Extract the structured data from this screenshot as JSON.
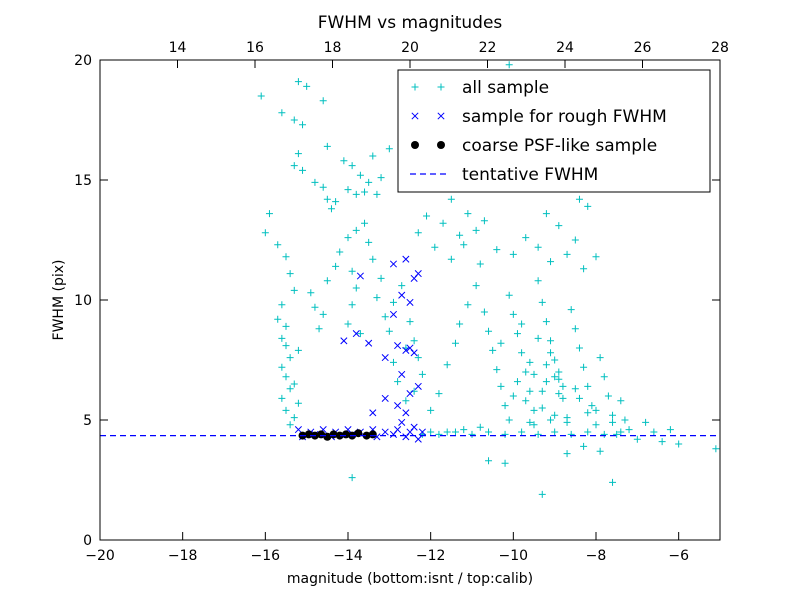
{
  "chart_data": {
    "type": "scatter",
    "title": "FWHM vs magnitudes",
    "xlabel": "magnitude (bottom:isnt / top:calib)",
    "ylabel": "FWHM (pix)",
    "xlim": [
      -20,
      -5
    ],
    "ylim": [
      0,
      20
    ],
    "x_ticks": [
      -20,
      -18,
      -16,
      -14,
      -12,
      -10,
      -8,
      -6
    ],
    "x_tick_labels": [
      "−20",
      "−18",
      "−16",
      "−14",
      "−12",
      "−10",
      "−8",
      "−6"
    ],
    "y_ticks": [
      0,
      5,
      10,
      15,
      20
    ],
    "y_tick_labels": [
      "0",
      "5",
      "10",
      "15",
      "20"
    ],
    "top_axis": {
      "lim": [
        12,
        28
      ],
      "ticks": [
        14,
        16,
        18,
        20,
        22,
        24,
        26,
        28
      ],
      "tick_labels": [
        "14",
        "16",
        "18",
        "20",
        "22",
        "24",
        "26",
        "28"
      ]
    },
    "grid": false,
    "legend_position": "top-right",
    "colors": {
      "all_sample": "#00bfbf",
      "rough_sample": "#0000ff",
      "psf_sample": "#000000",
      "tentative_line": "#0000ff"
    },
    "series": [
      {
        "name": "all sample",
        "marker": "+",
        "points": [
          [
            -16.1,
            18.5
          ],
          [
            -15.2,
            19.1
          ],
          [
            -15.0,
            18.9
          ],
          [
            -14.6,
            18.3
          ],
          [
            -15.6,
            17.8
          ],
          [
            -15.3,
            17.5
          ],
          [
            -15.1,
            17.3
          ],
          [
            -15.2,
            16.1
          ],
          [
            -15.3,
            15.6
          ],
          [
            -15.1,
            15.4
          ],
          [
            -14.8,
            14.9
          ],
          [
            -14.6,
            14.7
          ],
          [
            -14.5,
            14.2
          ],
          [
            -14.3,
            14.1
          ],
          [
            -14.4,
            13.8
          ],
          [
            -14.1,
            15.8
          ],
          [
            -13.9,
            15.6
          ],
          [
            -13.7,
            15.2
          ],
          [
            -14.0,
            14.6
          ],
          [
            -13.8,
            14.4
          ],
          [
            -13.6,
            14.5
          ],
          [
            -13.5,
            14.9
          ],
          [
            -13.3,
            14.4
          ],
          [
            -13.2,
            15.1
          ],
          [
            -14.5,
            16.4
          ],
          [
            -13.4,
            16.0
          ],
          [
            -13.0,
            16.3
          ],
          [
            -11.5,
            14.2
          ],
          [
            -11.1,
            13.6
          ],
          [
            -11.0,
            15.9
          ],
          [
            -10.5,
            14.8
          ],
          [
            -10.3,
            16.2
          ],
          [
            -10.1,
            19.8
          ],
          [
            -9.8,
            17.2
          ],
          [
            -9.6,
            16.8
          ],
          [
            -9.5,
            15.9
          ],
          [
            -9.3,
            15.1
          ],
          [
            -9.0,
            15.7
          ],
          [
            -8.8,
            15.4
          ],
          [
            -8.6,
            14.8
          ],
          [
            -8.4,
            14.2
          ],
          [
            -8.2,
            13.9
          ],
          [
            -8.5,
            12.5
          ],
          [
            -8.9,
            13.1
          ],
          [
            -9.2,
            13.6
          ],
          [
            -10.7,
            13.3
          ],
          [
            -10.9,
            12.9
          ],
          [
            -11.3,
            12.7
          ],
          [
            -11.7,
            13.2
          ],
          [
            -12.1,
            13.5
          ],
          [
            -12.3,
            12.8
          ],
          [
            -11.9,
            12.2
          ],
          [
            -11.5,
            11.7
          ],
          [
            -11.2,
            12.3
          ],
          [
            -10.8,
            11.5
          ],
          [
            -10.4,
            12.1
          ],
          [
            -10.0,
            11.9
          ],
          [
            -9.7,
            12.6
          ],
          [
            -9.4,
            12.2
          ],
          [
            -9.1,
            11.6
          ],
          [
            -8.7,
            11.9
          ],
          [
            -8.3,
            11.3
          ],
          [
            -8.0,
            11.8
          ],
          [
            -15.9,
            13.6
          ],
          [
            -16.0,
            12.8
          ],
          [
            -15.7,
            12.3
          ],
          [
            -15.5,
            11.8
          ],
          [
            -15.4,
            11.1
          ],
          [
            -15.3,
            10.4
          ],
          [
            -15.6,
            9.8
          ],
          [
            -15.7,
            9.2
          ],
          [
            -15.5,
            8.9
          ],
          [
            -15.6,
            8.4
          ],
          [
            -15.5,
            8.1
          ],
          [
            -15.4,
            7.6
          ],
          [
            -15.6,
            7.2
          ],
          [
            -15.5,
            6.8
          ],
          [
            -15.4,
            6.3
          ],
          [
            -15.6,
            5.9
          ],
          [
            -15.5,
            5.4
          ],
          [
            -15.3,
            5.1
          ],
          [
            -15.4,
            4.8
          ],
          [
            -15.2,
            7.9
          ],
          [
            -15.3,
            6.5
          ],
          [
            -15.2,
            5.7
          ],
          [
            -14.9,
            10.3
          ],
          [
            -14.8,
            9.7
          ],
          [
            -14.6,
            9.4
          ],
          [
            -14.7,
            8.8
          ],
          [
            -14.5,
            10.8
          ],
          [
            -14.3,
            11.4
          ],
          [
            -14.2,
            12.0
          ],
          [
            -14.0,
            12.6
          ],
          [
            -13.9,
            11.2
          ],
          [
            -13.8,
            10.5
          ],
          [
            -13.9,
            9.8
          ],
          [
            -14.0,
            9.0
          ],
          [
            -13.7,
            8.6
          ],
          [
            -13.8,
            12.9
          ],
          [
            -13.6,
            13.2
          ],
          [
            -13.5,
            12.4
          ],
          [
            -13.4,
            11.7
          ],
          [
            -13.2,
            10.9
          ],
          [
            -13.3,
            10.1
          ],
          [
            -13.1,
            9.3
          ],
          [
            -13.0,
            8.7
          ],
          [
            -12.9,
            9.9
          ],
          [
            -12.7,
            10.6
          ],
          [
            -12.5,
            9.1
          ],
          [
            -12.4,
            8.3
          ],
          [
            -12.3,
            7.6
          ],
          [
            -12.2,
            6.9
          ],
          [
            -12.4,
            6.2
          ],
          [
            -12.6,
            5.8
          ],
          [
            -12.8,
            6.6
          ],
          [
            -12.9,
            7.4
          ],
          [
            -12.6,
            8.0
          ],
          [
            -12.0,
            5.4
          ],
          [
            -11.8,
            6.1
          ],
          [
            -11.6,
            7.3
          ],
          [
            -11.4,
            8.2
          ],
          [
            -11.3,
            9.0
          ],
          [
            -11.1,
            9.8
          ],
          [
            -10.9,
            10.6
          ],
          [
            -10.7,
            9.5
          ],
          [
            -10.6,
            8.7
          ],
          [
            -10.5,
            7.9
          ],
          [
            -10.4,
            7.1
          ],
          [
            -10.3,
            6.4
          ],
          [
            -10.2,
            5.6
          ],
          [
            -10.1,
            10.2
          ],
          [
            -10.0,
            9.4
          ],
          [
            -9.9,
            8.6
          ],
          [
            -9.8,
            7.8
          ],
          [
            -9.7,
            7.0
          ],
          [
            -9.6,
            6.2
          ],
          [
            -9.5,
            5.4
          ],
          [
            -9.4,
            10.8
          ],
          [
            -9.3,
            9.9
          ],
          [
            -9.2,
            9.1
          ],
          [
            -9.1,
            8.3
          ],
          [
            -9.0,
            7.5
          ],
          [
            -8.9,
            6.7
          ],
          [
            -8.8,
            5.9
          ],
          [
            -8.7,
            5.1
          ],
          [
            -8.6,
            9.6
          ],
          [
            -8.5,
            8.8
          ],
          [
            -8.4,
            8.0
          ],
          [
            -8.3,
            7.2
          ],
          [
            -8.2,
            6.4
          ],
          [
            -8.1,
            5.6
          ],
          [
            -8.0,
            4.8
          ],
          [
            -7.9,
            7.6
          ],
          [
            -7.8,
            6.8
          ],
          [
            -7.7,
            6.0
          ],
          [
            -7.6,
            5.2
          ],
          [
            -7.5,
            4.4
          ],
          [
            -7.4,
            5.8
          ],
          [
            -7.3,
            5.0
          ],
          [
            -7.2,
            4.6
          ],
          [
            -7.0,
            4.2
          ],
          [
            -6.8,
            4.9
          ],
          [
            -6.6,
            4.5
          ],
          [
            -6.4,
            4.1
          ],
          [
            -6.2,
            4.6
          ],
          [
            -6.0,
            4.0
          ],
          [
            -5.1,
            3.8
          ],
          [
            -7.6,
            2.4
          ],
          [
            -9.3,
            1.9
          ],
          [
            -10.6,
            3.3
          ],
          [
            -10.2,
            3.2
          ],
          [
            -13.9,
            2.6
          ],
          [
            -8.7,
            3.6
          ],
          [
            -8.3,
            3.9
          ],
          [
            -7.9,
            3.7
          ],
          [
            -9.6,
            4.9
          ],
          [
            -10.8,
            4.7
          ],
          [
            -11.2,
            4.6
          ],
          [
            -11.6,
            4.5
          ],
          [
            -12.0,
            4.5
          ],
          [
            -12.2,
            4.4
          ],
          [
            -11.8,
            4.4
          ],
          [
            -11.4,
            4.5
          ],
          [
            -11.0,
            4.4
          ],
          [
            -10.6,
            4.5
          ],
          [
            -10.2,
            4.4
          ],
          [
            -9.8,
            4.5
          ],
          [
            -9.4,
            4.4
          ],
          [
            -9.0,
            4.5
          ],
          [
            -8.6,
            4.4
          ],
          [
            -8.2,
            4.5
          ],
          [
            -7.8,
            4.4
          ],
          [
            -7.4,
            4.5
          ],
          [
            -9.9,
            6.6
          ],
          [
            -9.5,
            6.9
          ],
          [
            -9.2,
            7.3
          ],
          [
            -8.9,
            6.1
          ],
          [
            -9.7,
            5.8
          ],
          [
            -10.0,
            6.0
          ],
          [
            -9.3,
            5.5
          ],
          [
            -9.0,
            5.2
          ],
          [
            -8.8,
            6.4
          ],
          [
            -9.1,
            7.8
          ],
          [
            -9.4,
            8.4
          ],
          [
            -9.8,
            9.0
          ],
          [
            -10.3,
            8.2
          ],
          [
            -9.6,
            7.4
          ],
          [
            -9.2,
            6.6
          ],
          [
            -8.9,
            7.0
          ],
          [
            -8.5,
            6.3
          ],
          [
            -8.2,
            5.3
          ],
          [
            -8.4,
            5.9
          ],
          [
            -9.1,
            5.0
          ],
          [
            -9.5,
            4.8
          ],
          [
            -10.1,
            5.0
          ],
          [
            -8.7,
            4.9
          ],
          [
            -8.0,
            5.4
          ],
          [
            -7.6,
            4.9
          ],
          [
            -9.3,
            6.2
          ],
          [
            -9.0,
            6.8
          ]
        ]
      },
      {
        "name": "sample for rough FWHM",
        "marker": "x",
        "points": [
          [
            -13.7,
            11.0
          ],
          [
            -12.6,
            11.7
          ],
          [
            -12.9,
            11.5
          ],
          [
            -12.4,
            10.9
          ],
          [
            -12.3,
            11.1
          ],
          [
            -12.7,
            10.2
          ],
          [
            -12.5,
            9.9
          ],
          [
            -12.9,
            9.4
          ],
          [
            -13.8,
            8.6
          ],
          [
            -14.1,
            8.3
          ],
          [
            -13.5,
            8.2
          ],
          [
            -12.8,
            8.1
          ],
          [
            -12.6,
            7.9
          ],
          [
            -12.4,
            7.8
          ],
          [
            -12.5,
            8.0
          ],
          [
            -13.1,
            7.6
          ],
          [
            -12.7,
            6.9
          ],
          [
            -12.3,
            6.4
          ],
          [
            -12.5,
            6.1
          ],
          [
            -12.8,
            5.6
          ],
          [
            -13.1,
            5.9
          ],
          [
            -12.6,
            5.3
          ],
          [
            -13.4,
            5.3
          ],
          [
            -12.7,
            4.9
          ],
          [
            -12.4,
            4.7
          ],
          [
            -15.2,
            4.6
          ],
          [
            -14.9,
            4.5
          ],
          [
            -14.6,
            4.6
          ],
          [
            -14.3,
            4.5
          ],
          [
            -14.0,
            4.6
          ],
          [
            -13.7,
            4.5
          ],
          [
            -13.4,
            4.6
          ],
          [
            -13.1,
            4.5
          ],
          [
            -12.8,
            4.6
          ],
          [
            -12.5,
            4.5
          ],
          [
            -12.2,
            4.5
          ],
          [
            -15.1,
            4.3
          ],
          [
            -14.8,
            4.4
          ],
          [
            -14.4,
            4.3
          ],
          [
            -13.9,
            4.4
          ],
          [
            -13.3,
            4.3
          ],
          [
            -12.9,
            4.4
          ],
          [
            -12.6,
            4.3
          ],
          [
            -12.3,
            4.2
          ]
        ]
      },
      {
        "name": "coarse PSF-like sample",
        "marker": "o",
        "points": [
          [
            -15.1,
            4.35
          ],
          [
            -14.95,
            4.4
          ],
          [
            -14.8,
            4.35
          ],
          [
            -14.65,
            4.4
          ],
          [
            -14.5,
            4.3
          ],
          [
            -14.35,
            4.4
          ],
          [
            -14.2,
            4.35
          ],
          [
            -14.05,
            4.4
          ],
          [
            -13.9,
            4.35
          ],
          [
            -13.75,
            4.45
          ],
          [
            -13.55,
            4.35
          ],
          [
            -13.4,
            4.4
          ]
        ]
      }
    ],
    "tentative_fwhm": 4.35,
    "legend": [
      "all sample",
      "sample for rough FWHM",
      "coarse PSF-like sample",
      "tentative FWHM"
    ]
  }
}
